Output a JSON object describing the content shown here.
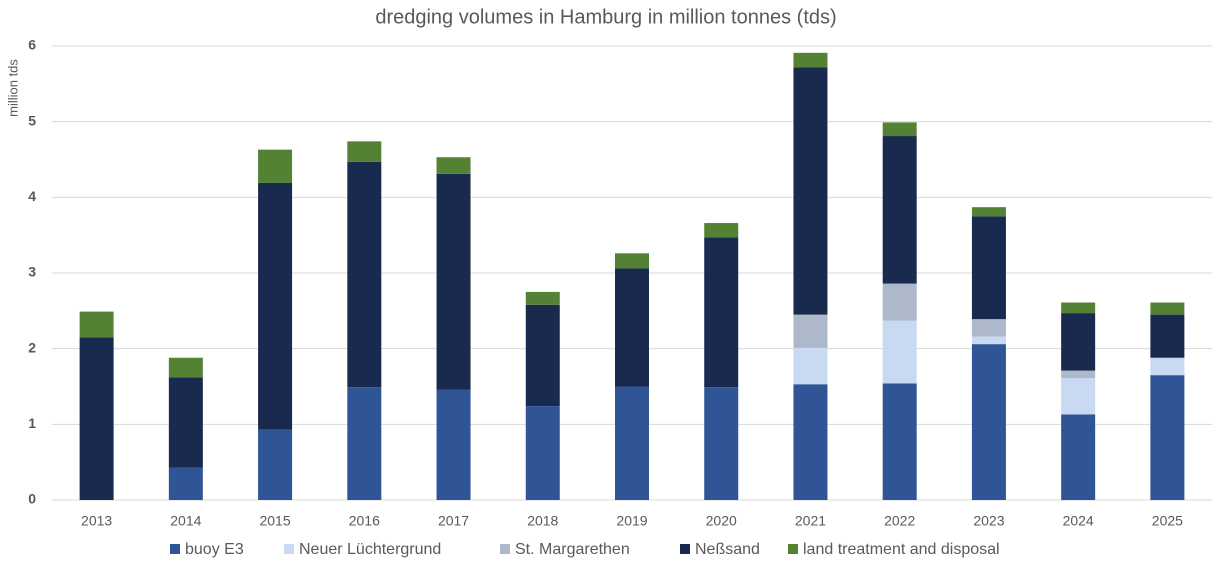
{
  "chart_data": {
    "type": "stacked-bar",
    "title": "dredging volumes in Hamburg in million tonnes (tds)",
    "y_label": "million tds",
    "categories": [
      "2013",
      "2014",
      "2015",
      "2016",
      "2017",
      "2018",
      "2019",
      "2020",
      "2021",
      "2022",
      "2023",
      "2024",
      "2025"
    ],
    "series": [
      {
        "name": "buoy E3",
        "color": "#2f5597",
        "values": [
          0,
          0.43,
          0.93,
          1.49,
          1.46,
          1.24,
          1.5,
          1.49,
          1.53,
          1.54,
          2.06,
          1.13,
          1.65
        ]
      },
      {
        "name": "Neuer Lüchtergrund",
        "color": "#c9d9f2",
        "values": [
          0,
          0,
          0,
          0,
          0,
          0,
          0,
          0,
          0.48,
          0.83,
          0.1,
          0.48,
          0.23
        ]
      },
      {
        "name": "St. Margarethen",
        "color": "#adb9ca",
        "values": [
          0,
          0,
          0,
          0,
          0,
          0,
          0,
          0,
          0.44,
          0.49,
          0.23,
          0.1,
          0
        ]
      },
      {
        "name": "Neßsand",
        "color": "#1a2a4e",
        "values": [
          2.15,
          1.19,
          3.26,
          2.98,
          2.85,
          1.34,
          1.56,
          1.98,
          3.27,
          1.95,
          1.36,
          0.76,
          0.57
        ]
      },
      {
        "name": "land treatment and disposal",
        "color": "#548235",
        "values": [
          0.34,
          0.26,
          0.44,
          0.27,
          0.22,
          0.17,
          0.2,
          0.19,
          0.19,
          0.18,
          0.12,
          0.14,
          0.16
        ]
      }
    ],
    "ylim": [
      0,
      6
    ],
    "yticks": [
      0,
      1,
      2,
      3,
      4,
      5,
      6
    ],
    "grid": true,
    "legend": "bottom"
  }
}
